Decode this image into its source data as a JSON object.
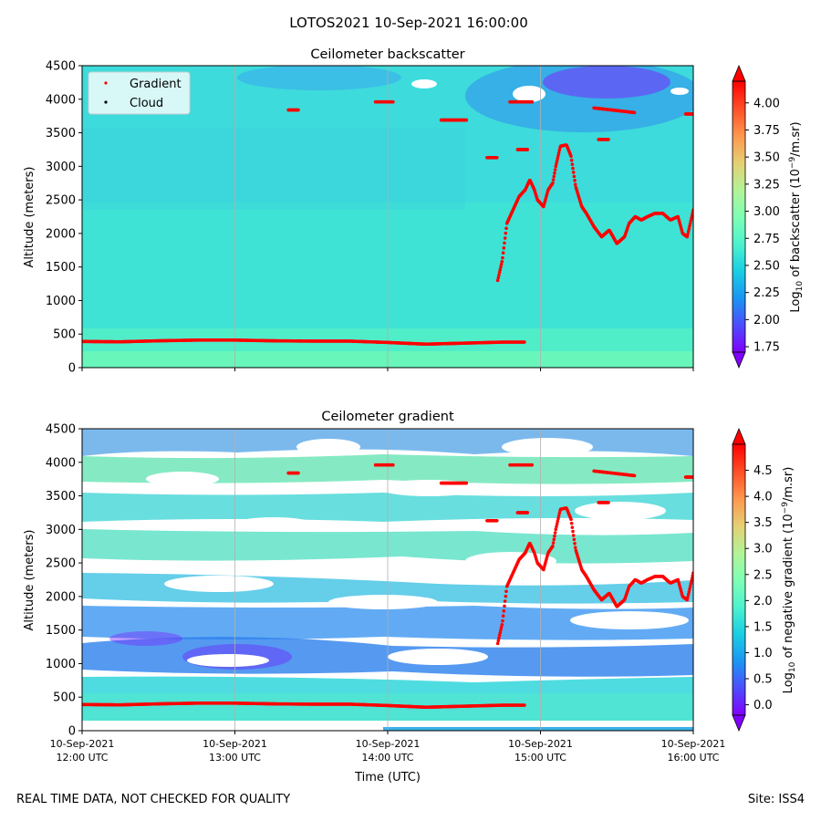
{
  "figure": {
    "suptitle": "LOTOS2021 10-Sep-2021 16:00:00",
    "footer_left": "REAL TIME DATA, NOT CHECKED FOR QUALITY",
    "footer_right": "Site: ISS4"
  },
  "chart_data": [
    {
      "type": "heatmap",
      "title": "Ceilometer backscatter",
      "xlabel": "",
      "ylabel": "Altitude (meters)",
      "ylim": [
        0,
        4500
      ],
      "yticks": [
        0,
        500,
        1000,
        1500,
        2000,
        2500,
        3000,
        3500,
        4000,
        4500
      ],
      "ytick_labels": [
        "0",
        "500",
        "1000",
        "1500",
        "2000",
        "2500",
        "3000",
        "3500",
        "4000",
        "4500"
      ],
      "xlim_hours": [
        12,
        16
      ],
      "xtick_hours": [
        12,
        13,
        14,
        15,
        16
      ],
      "xtick_labels_visible": false,
      "grid": "vertical",
      "legend": {
        "placement": "top-left",
        "entries": [
          {
            "label": "Gradient",
            "color": "#ff0000"
          },
          {
            "label": "Cloud",
            "color": "#000000"
          }
        ]
      },
      "colorbar": {
        "label": "Log10 of backscatter (10^-9/m.sr)",
        "label_parts": [
          "Log",
          "10",
          " of backscatter (10",
          "−9",
          "/m.sr)"
        ],
        "range": [
          1.7,
          4.2
        ],
        "ticks": [
          1.75,
          2.0,
          2.25,
          2.5,
          2.75,
          3.0,
          3.25,
          3.5,
          3.75,
          4.0
        ],
        "tick_labels": [
          "1.75",
          "2.00",
          "2.25",
          "2.50",
          "2.75",
          "3.00",
          "3.25",
          "3.50",
          "3.75",
          "4.00"
        ],
        "extend": "both",
        "cmap": "rainbow"
      }
    },
    {
      "type": "heatmap",
      "title": "Ceilometer gradient",
      "xlabel": "Time (UTC)",
      "ylabel": "Altitude (meters)",
      "ylim": [
        0,
        4500
      ],
      "yticks": [
        0,
        500,
        1000,
        1500,
        2000,
        2500,
        3000,
        3500,
        4000,
        4500
      ],
      "ytick_labels": [
        "0",
        "500",
        "1000",
        "1500",
        "2000",
        "2500",
        "3000",
        "3500",
        "4000",
        "4500"
      ],
      "xlim_hours": [
        12,
        16
      ],
      "xtick_hours": [
        12,
        13,
        14,
        15,
        16
      ],
      "xtick_labels": [
        [
          "10-Sep-2021",
          "12:00 UTC"
        ],
        [
          "10-Sep-2021",
          "13:00 UTC"
        ],
        [
          "10-Sep-2021",
          "14:00 UTC"
        ],
        [
          "10-Sep-2021",
          "15:00 UTC"
        ],
        [
          "10-Sep-2021",
          "16:00 UTC"
        ]
      ],
      "grid": "vertical",
      "colorbar": {
        "label": "Log10 of negative gradient (10^-9/m.sr)",
        "label_parts": [
          "Log",
          "10",
          " of negative gradient (10",
          "−9",
          "/m.sr)"
        ],
        "range": [
          -0.2,
          5.0
        ],
        "ticks": [
          0.0,
          0.5,
          1.0,
          1.5,
          2.0,
          2.5,
          3.0,
          3.5,
          4.0,
          4.5
        ],
        "tick_labels": [
          "0.0",
          "0.5",
          "1.0",
          "1.5",
          "2.0",
          "2.5",
          "3.0",
          "3.5",
          "4.0",
          "4.5"
        ],
        "extend": "both",
        "cmap": "rainbow"
      }
    }
  ],
  "gradient_points": {
    "boundary_layer": {
      "hours": [
        12.0,
        12.25,
        12.5,
        12.75,
        13.0,
        13.25,
        13.5,
        13.75,
        14.0,
        14.25,
        14.5,
        14.75,
        14.9
      ],
      "alt": [
        390,
        385,
        400,
        410,
        410,
        400,
        395,
        395,
        375,
        350,
        365,
        380,
        380
      ]
    },
    "upper_segments": [
      {
        "h0": 13.35,
        "h1": 13.42,
        "alt": 3840
      },
      {
        "h0": 13.92,
        "h1": 14.04,
        "alt": 3960
      },
      {
        "h0": 14.35,
        "h1": 14.52,
        "alt": 3690
      },
      {
        "h0": 14.65,
        "h1": 14.72,
        "alt": 3130
      },
      {
        "h0": 14.8,
        "h1": 14.95,
        "alt": 3960
      },
      {
        "h0": 14.85,
        "h1": 14.92,
        "alt": 3250
      },
      {
        "h0": 15.35,
        "h1": 15.62,
        "alt": 3870,
        "alt_end": 3800
      },
      {
        "h0": 15.38,
        "h1": 15.45,
        "alt": 3400
      },
      {
        "h0": 15.95,
        "h1": 16.0,
        "alt": 3780
      }
    ],
    "rising_trace": {
      "hours": [
        14.72,
        14.75,
        14.78,
        14.82,
        14.86,
        14.9,
        14.93,
        14.96,
        14.98,
        15.0,
        15.02,
        15.05,
        15.08,
        15.1,
        15.13,
        15.17,
        15.2,
        15.23,
        15.27,
        15.3,
        15.35,
        15.4,
        15.45,
        15.5,
        15.55,
        15.58,
        15.62,
        15.66,
        15.7,
        15.75,
        15.8,
        15.85,
        15.9,
        15.93,
        15.96,
        16.0
      ],
      "alt": [
        1300,
        1600,
        2150,
        2350,
        2550,
        2650,
        2800,
        2650,
        2500,
        2450,
        2400,
        2650,
        2750,
        3000,
        3300,
        3320,
        3150,
        2700,
        2400,
        2300,
        2100,
        1950,
        2050,
        1850,
        1950,
        2150,
        2250,
        2200,
        2250,
        2300,
        2300,
        2200,
        2250,
        2000,
        1950,
        2350
      ]
    }
  }
}
